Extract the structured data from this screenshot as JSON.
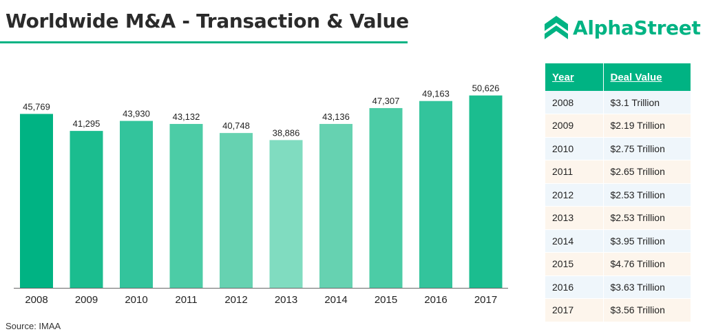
{
  "header": {
    "title": "Worldwide M&A - Transaction & Value"
  },
  "logo": {
    "text": "AlphaStreet",
    "icon": "alphastreet-chevron-icon",
    "color": "#00b383"
  },
  "source": "Source: IMAA",
  "chart_data": {
    "type": "bar",
    "categories": [
      "2008",
      "2009",
      "2010",
      "2011",
      "2012",
      "2013",
      "2014",
      "2015",
      "2016",
      "2017"
    ],
    "values": [
      45769,
      41295,
      43930,
      43132,
      40748,
      38886,
      43136,
      47307,
      49163,
      50626
    ],
    "value_labels": [
      "45,769",
      "41,295",
      "43,930",
      "43,132",
      "40,748",
      "38,886",
      "43,136",
      "47,307",
      "49,163",
      "50,626"
    ],
    "bar_colors": [
      "#00b383",
      "#1bbd8f",
      "#33c49c",
      "#4ccca6",
      "#66d2b1",
      "#80dcc0",
      "#66d2b1",
      "#4ccca6",
      "#33c49c",
      "#1bbd8f"
    ],
    "ylim": [
      0,
      54000
    ],
    "grid": false,
    "legend": "none"
  },
  "deal_table": {
    "headers": [
      "Year",
      "Deal Value"
    ],
    "rows": [
      [
        "2008",
        "$3.1 Trillion"
      ],
      [
        "2009",
        "$2.19 Trillion"
      ],
      [
        "2010",
        "$2.75 Trillion"
      ],
      [
        "2011",
        "$2.65 Trillion"
      ],
      [
        "2012",
        "$2.53 Trillion"
      ],
      [
        "2013",
        "$2.53 Trillion"
      ],
      [
        "2014",
        "$3.95 Trillion"
      ],
      [
        "2015",
        "$4.76 Trillion"
      ],
      [
        "2016",
        "$3.63 Trillion"
      ],
      [
        "2017",
        "$3.56 Trillion"
      ]
    ],
    "header_color": "#00b383"
  }
}
